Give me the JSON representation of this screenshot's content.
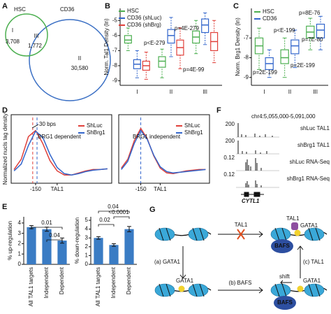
{
  "panel_labels": [
    "A",
    "B",
    "C",
    "D",
    "E",
    "F",
    "G"
  ],
  "venn": {
    "sets": [
      {
        "name": "HSC",
        "color": "#4caf50"
      },
      {
        "name": "CD36",
        "color": "#3a6fc4"
      }
    ],
    "regions": [
      {
        "name": "I",
        "count": "3,708"
      },
      {
        "name": "III",
        "count": "1,772"
      },
      {
        "name": "II",
        "count": "30,580"
      }
    ]
  },
  "chart_data": [
    {
      "type": "box",
      "y_label": "Norm. Tal1 Density (ln)",
      "categories": [
        "I",
        "II",
        "III"
      ],
      "ylim": [
        -9.3,
        -4.2
      ],
      "yticks": [
        -9,
        -8,
        -7,
        -6,
        -5
      ],
      "series": [
        {
          "name": "HSC",
          "color": "#4caf50",
          "min": [
            -7.0,
            -8.8,
            -7.2
          ],
          "q1": [
            -6.5,
            -8.1,
            -6.5
          ],
          "median": [
            -6.3,
            -7.7,
            -6.1
          ],
          "q3": [
            -6.0,
            -7.4,
            -5.7
          ],
          "max": [
            -5.5,
            -6.9,
            -5.0
          ]
        },
        {
          "name": "CD36 (shLuc)",
          "color": "#3366cc",
          "min": [
            -8.8,
            -7.4,
            -6.6
          ],
          "q1": [
            -8.2,
            -6.5,
            -5.8
          ],
          "median": [
            -7.9,
            -6.0,
            -5.3
          ],
          "q3": [
            -7.6,
            -5.6,
            -4.9
          ],
          "max": [
            -7.0,
            -4.8,
            -4.5
          ]
        },
        {
          "name": "CD36 (shBrg)",
          "color": "#e0403a",
          "min": [
            -8.9,
            -8.2,
            -7.8
          ],
          "q1": [
            -8.3,
            -7.3,
            -7.0
          ],
          "median": [
            -8.0,
            -6.8,
            -6.4
          ],
          "q3": [
            -7.7,
            -6.3,
            -5.8
          ],
          "max": [
            -7.1,
            -5.5,
            -5.0
          ]
        }
      ],
      "annotations": [
        "p=4E-279",
        "p<E-279",
        "p=4E-99"
      ]
    },
    {
      "type": "box",
      "y_label": "Norm. Brg1 Density (ln)",
      "categories": [
        "I",
        "II",
        "III"
      ],
      "ylim": [
        -9.4,
        -5.5
      ],
      "yticks": [
        -9,
        -8,
        -7
      ],
      "series": [
        {
          "name": "HSC",
          "color": "#4caf50",
          "min": [
            -8.6,
            -9.0,
            -7.6
          ],
          "q1": [
            -7.8,
            -8.3,
            -7.0
          ],
          "median": [
            -7.4,
            -8.0,
            -6.7
          ],
          "q3": [
            -7.0,
            -7.6,
            -6.4
          ],
          "max": [
            -6.5,
            -7.0,
            -6.0
          ]
        },
        {
          "name": "CD36",
          "color": "#3366cc",
          "min": [
            -9.0,
            -8.5,
            -7.6
          ],
          "q1": [
            -8.6,
            -7.8,
            -7.0
          ],
          "median": [
            -8.3,
            -7.4,
            -6.6
          ],
          "q3": [
            -8.0,
            -7.1,
            -6.3
          ],
          "max": [
            -7.6,
            -6.6,
            -5.9
          ]
        }
      ],
      "annotations": [
        "p=8E-76",
        "p<E-199",
        "p=7E-80",
        "p=2E-199",
        "p=2E-199"
      ]
    },
    {
      "type": "line",
      "y_label": "Normalized nucls tag density",
      "x": [
        -300,
        -250,
        -200,
        -150,
        -100,
        -50,
        0,
        50,
        100,
        150,
        200,
        250,
        300,
        350
      ],
      "xlim": [
        -320,
        380
      ],
      "xticks": [
        -150,
        {
          "value": 0,
          "label": "TAL1"
        }
      ],
      "ylim": [
        0,
        1
      ],
      "series": [
        {
          "name": "ShLuc",
          "color": "#e0403a",
          "values": [
            0.2,
            0.35,
            0.68,
            0.77,
            0.58,
            0.33,
            0.18,
            0.12,
            0.12,
            0.15,
            0.18,
            0.2,
            0.2,
            0.21
          ]
        },
        {
          "name": "ShBrg1",
          "color": "#3366cc",
          "values": [
            0.18,
            0.28,
            0.55,
            0.76,
            0.67,
            0.42,
            0.23,
            0.14,
            0.12,
            0.14,
            0.17,
            0.19,
            0.2,
            0.21
          ]
        }
      ],
      "vlines": [
        {
          "value": -170,
          "color": "#e0403a"
        },
        {
          "value": -140,
          "color": "#3366cc"
        }
      ],
      "annotations": [
        "30 bps",
        "BRG1 dependent"
      ]
    },
    {
      "type": "line",
      "x": [
        -300,
        -250,
        -200,
        -150,
        -100,
        -50,
        0,
        50,
        100,
        150,
        200,
        250,
        300,
        350
      ],
      "xlim": [
        -320,
        380
      ],
      "xticks": [
        -150,
        {
          "value": 0,
          "label": "TAL1"
        }
      ],
      "ylim": [
        0,
        1
      ],
      "series": [
        {
          "name": "ShLuc",
          "color": "#e0403a",
          "values": [
            0.22,
            0.35,
            0.62,
            0.8,
            0.65,
            0.4,
            0.22,
            0.15,
            0.14,
            0.16,
            0.18,
            0.19,
            0.2,
            0.2
          ]
        },
        {
          "name": "ShBrg1",
          "color": "#3366cc",
          "values": [
            0.2,
            0.32,
            0.58,
            0.77,
            0.64,
            0.41,
            0.24,
            0.17,
            0.15,
            0.16,
            0.17,
            0.18,
            0.19,
            0.2
          ]
        }
      ],
      "vlines": [
        {
          "value": -150,
          "color": "#3366cc"
        }
      ],
      "annotations": [
        "BRG1 independent"
      ]
    },
    {
      "type": "bar",
      "y_label": "% up-regulation",
      "categories": [
        "All TAL1 targets",
        "Independent",
        "Dependent"
      ],
      "values": [
        3.6,
        3.4,
        2.3
      ],
      "errors": [
        0.15,
        0.2,
        0.25
      ],
      "color": "#3a7cc4",
      "ylim": [
        0,
        4.6
      ],
      "yticks": [
        0,
        1,
        2,
        3,
        4
      ],
      "annotations": [
        "0.01",
        "0.04"
      ]
    },
    {
      "type": "bar",
      "y_label": "% down-regulation",
      "categories": [
        "All TAL1 targets",
        "Independent",
        "Dependent"
      ],
      "values": [
        3.0,
        2.2,
        4.0
      ],
      "errors": [
        0.15,
        0.15,
        0.3
      ],
      "color": "#3a7cc4",
      "ylim": [
        0,
        5.4
      ],
      "yticks": [
        0,
        1,
        2,
        3,
        4,
        5
      ],
      "annotations": [
        "0.04",
        "0.02",
        "<0.0001"
      ]
    }
  ],
  "tracks": {
    "region": "chr4:5,055,000-5,091,000",
    "rows": [
      {
        "name": "shLuc TAL1",
        "scale": "200"
      },
      {
        "name": "shBrg1 TAL1",
        "scale": "200"
      },
      {
        "name": "shLuc RNA-Seq",
        "scale": "0.12"
      },
      {
        "name": "shBrg1 RNA-Seq",
        "scale": "0.12"
      }
    ],
    "gene": "CYTL1"
  },
  "diagram": {
    "arrows": [
      "TAL1",
      "(a) GATA1",
      "(b) BAFS",
      "(c) TAL1"
    ],
    "states": [
      {
        "labels": []
      },
      {
        "labels": [
          "TAL1",
          "GATA1",
          "BAFS"
        ]
      },
      {
        "labels": [
          "GATA1"
        ]
      },
      {
        "labels": [
          "GATA1",
          "BAFS",
          "shift"
        ]
      }
    ]
  }
}
